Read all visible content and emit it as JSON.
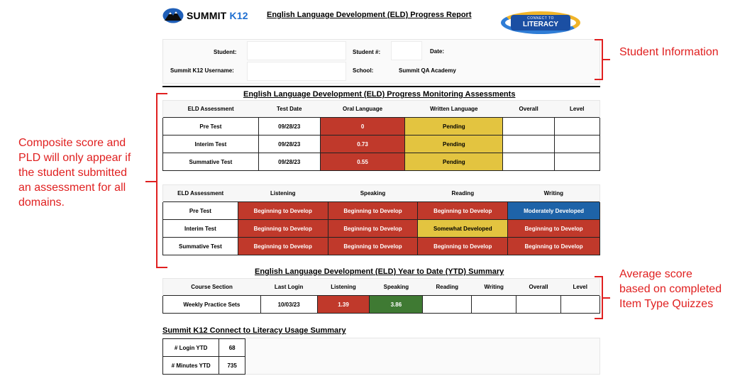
{
  "header": {
    "logo_summit": "SUMMIT",
    "logo_k12": "K12",
    "title": "English Language Development (ELD) Progress Report",
    "badge_line1": "CONNECT TO",
    "badge_line2": "LITERACY"
  },
  "student_info": {
    "student_label": "Student:",
    "student_value": "",
    "student_num_label": "Student #:",
    "student_num_value": "",
    "date_label": "Date:",
    "date_value": "",
    "username_label": "Summit K12 Username:",
    "username_value": "",
    "school_label": "School:",
    "school_value": "Summit QA Academy"
  },
  "progress_monitoring": {
    "title": "English Language Development (ELD) Progress Monitoring Assessments",
    "headers": [
      "ELD Assessment",
      "Test Date",
      "Oral Language",
      "Written Language",
      "Overall",
      "Level"
    ],
    "rows": [
      {
        "name": "Pre Test",
        "date": "09/28/23",
        "oral": "0",
        "written": "Pending",
        "overall": "",
        "level": ""
      },
      {
        "name": "Interim Test",
        "date": "09/28/23",
        "oral": "0.73",
        "written": "Pending",
        "overall": "",
        "level": ""
      },
      {
        "name": "Summative Test",
        "date": "09/28/23",
        "oral": "0.55",
        "written": "Pending",
        "overall": "",
        "level": ""
      }
    ]
  },
  "domains": {
    "headers": [
      "ELD Assessment",
      "Listening",
      "Speaking",
      "Reading",
      "Writing"
    ],
    "rows": [
      {
        "name": "Pre Test",
        "listening": "Beginning to Develop",
        "speaking": "Beginning to Develop",
        "reading": "Beginning to Develop",
        "writing": "Moderately Developed"
      },
      {
        "name": "Interim Test",
        "listening": "Beginning to Develop",
        "speaking": "Beginning to Develop",
        "reading": "Somewhat Developed",
        "writing": "Beginning to Develop"
      },
      {
        "name": "Summative Test",
        "listening": "Beginning to Develop",
        "speaking": "Beginning to Develop",
        "reading": "Beginning to Develop",
        "writing": "Beginning to Develop"
      }
    ]
  },
  "ytd": {
    "title": "English Language Development (ELD) Year to Date (YTD) Summary",
    "headers": [
      "Course Section",
      "Last Login",
      "Listening",
      "Speaking",
      "Reading",
      "Writing",
      "Overall",
      "Level"
    ],
    "row": {
      "section": "Weekly Practice Sets",
      "last_login": "10/03/23",
      "listening": "1.39",
      "speaking": "3.86",
      "reading": "",
      "writing": "",
      "overall": "",
      "level": ""
    }
  },
  "usage": {
    "title": "Summit K12 Connect to Literacy Usage Summary",
    "rows": [
      {
        "label": "# Login YTD",
        "value": "68"
      },
      {
        "label": "# Minutes YTD",
        "value": "735"
      }
    ]
  },
  "annotations": {
    "student_info": "Student Information",
    "composite": "Composite score and PLD will only appear if the student submitted an assessment for all domains.",
    "average": "Average score based on completed Item Type Quizzes"
  },
  "colors": {
    "red": "#c0392b",
    "yellow": "#e3c440",
    "blue": "#1e63a8",
    "green": "#3f7a33",
    "annotation": "#e02020"
  }
}
